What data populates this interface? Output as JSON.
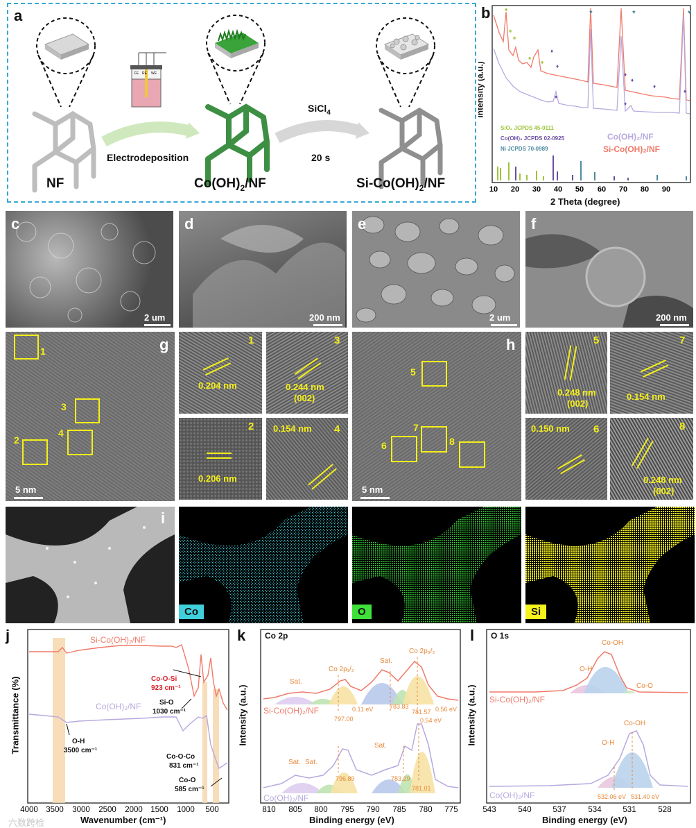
{
  "panel_a": {
    "letter": "a",
    "labels": {
      "nf": "NF",
      "co": "Co(OH)",
      "co_sub": "2",
      "co_tail": "/NF",
      "si": "Si-Co(OH)",
      "si_sub": "2",
      "si_tail": "/NF"
    },
    "step1": "Electrodeposition",
    "step2_top": "SiCl",
    "step2_top_sub": "4",
    "step2_bottom": "20 s",
    "cell_labels": [
      "CE",
      "RE",
      "WE"
    ]
  },
  "panel_b": {
    "letter": "b",
    "ylabel": "Intensity (a.u.)",
    "xlabel": "2 Theta (degree)",
    "xticks": [
      "10",
      "20",
      "30",
      "40",
      "50",
      "60",
      "70",
      "80",
      "90"
    ],
    "legend_refs": [
      "SiO₂ JCPDS 45-0111",
      "Co(OH)₂ JCPDS 02-0925",
      "Ni JCPDS 70-0989"
    ],
    "series": [
      "Co(OH)₂/NF",
      "Si-Co(OH)₂/NF"
    ],
    "colors": {
      "si": "#f07a6a",
      "co": "#b7a9de",
      "sio2": "#9ec43a",
      "cooh": "#6b4ea0",
      "ni": "#4f8aa0"
    }
  },
  "sem": {
    "c": {
      "letter": "c",
      "scale": "2 um"
    },
    "d": {
      "letter": "d",
      "scale": "200 nm"
    },
    "e": {
      "letter": "e",
      "scale": "2 um"
    },
    "f": {
      "letter": "f",
      "scale": "200 nm"
    }
  },
  "tem": {
    "g": {
      "letter": "g",
      "scale": "5 nm",
      "boxes": [
        "1",
        "2",
        "3",
        "4"
      ]
    },
    "h": {
      "letter": "h",
      "scale": "5 nm",
      "boxes": [
        "5",
        "6",
        "7",
        "8"
      ]
    },
    "insets_g": [
      {
        "num": "1",
        "d": "0.204 nm",
        "hkl": ""
      },
      {
        "num": "3",
        "d": "0.244 nm",
        "hkl": "(002)"
      },
      {
        "num": "2",
        "d": "0.206 nm",
        "hkl": ""
      },
      {
        "num": "4",
        "d": "0.154 nm",
        "hkl": ""
      }
    ],
    "insets_h": [
      {
        "num": "5",
        "d": "0.248 nm",
        "hkl": "(002)"
      },
      {
        "num": "7",
        "d": "0.154 nm",
        "hkl": ""
      },
      {
        "num": "6",
        "d": "0.150 nm",
        "hkl": ""
      },
      {
        "num": "8",
        "d": "0.248 nm",
        "hkl": "(002)"
      }
    ]
  },
  "eds": {
    "letter": "i",
    "maps": [
      {
        "el": "Co",
        "color": "#35c9d4",
        "tag": "#3fd0dc"
      },
      {
        "el": "O",
        "color": "#39d43a",
        "tag": "#3fe03a"
      },
      {
        "el": "Si",
        "color": "#f2ef1f",
        "tag": "#f6f21c"
      }
    ]
  },
  "panel_j": {
    "letter": "j",
    "ylabel": "Transmittance (%)",
    "xlabel": "Wavenumber (cm⁻¹)",
    "xticks": [
      "4000",
      "3500",
      "3000",
      "2500",
      "2000",
      "1500",
      "1000",
      "500"
    ],
    "series": [
      "Si-Co(OH)₂/NF",
      "Co(OH)₂/NF"
    ],
    "annotations": {
      "coosi": "Co-O-Si",
      "coosi_val": "923 cm⁻¹",
      "sio": "Si-O",
      "sio_val": "1030 cm⁻¹",
      "oh": "O-H",
      "oh_val": "3500 cm⁻¹",
      "cooco": "Co-O-Co",
      "cooco_val": "831 cm⁻¹",
      "coo": "Co-O",
      "coo_val": "585 cm⁻¹"
    }
  },
  "panel_k": {
    "letter": "k",
    "title": "Co 2p",
    "ylabel": "Intensity (a.u.)",
    "xlabel": "Binding energy (eV)",
    "xticks": [
      "810",
      "805",
      "800",
      "795",
      "790",
      "785",
      "780",
      "775"
    ],
    "series": [
      "Si-Co(OH)₂/NF",
      "Co(OH)₂/NF"
    ],
    "peaks_top": {
      "sat1": "Sat.",
      "co12": "Co 2p₁/₂",
      "sat2": "Sat.",
      "co32": "Co 2p₃/₂",
      "v1": "797.00",
      "v2": "783.83",
      "v3": "781.57",
      "s1": "0.11 eV",
      "s2": "0.56 eV",
      "s3": "0.54 eV"
    },
    "peaks_bot": {
      "sat1": "Sat.",
      "sat2": "Sat.",
      "sat3": "Sat.",
      "v1": "796.89",
      "v2": "783.29",
      "v3": "781.01"
    }
  },
  "panel_l": {
    "letter": "l",
    "title": "O 1s",
    "ylabel": "Intensity (a.u.)",
    "xlabel": "Binding energy (eV)",
    "xticks": [
      "543",
      "540",
      "537",
      "534",
      "531",
      "528"
    ],
    "series": [
      "Si-Co(OH)₂/NF",
      "Co(OH)₂/NF"
    ],
    "top": {
      "coh": "Co-OH",
      "oh": "O-H",
      "coo": "Co-O"
    },
    "bot": {
      "coh": "Co-OH",
      "oh": "O-H",
      "v1": "532.06 eV",
      "v2": "531.40 eV"
    }
  },
  "watermark": "六数跨检"
}
